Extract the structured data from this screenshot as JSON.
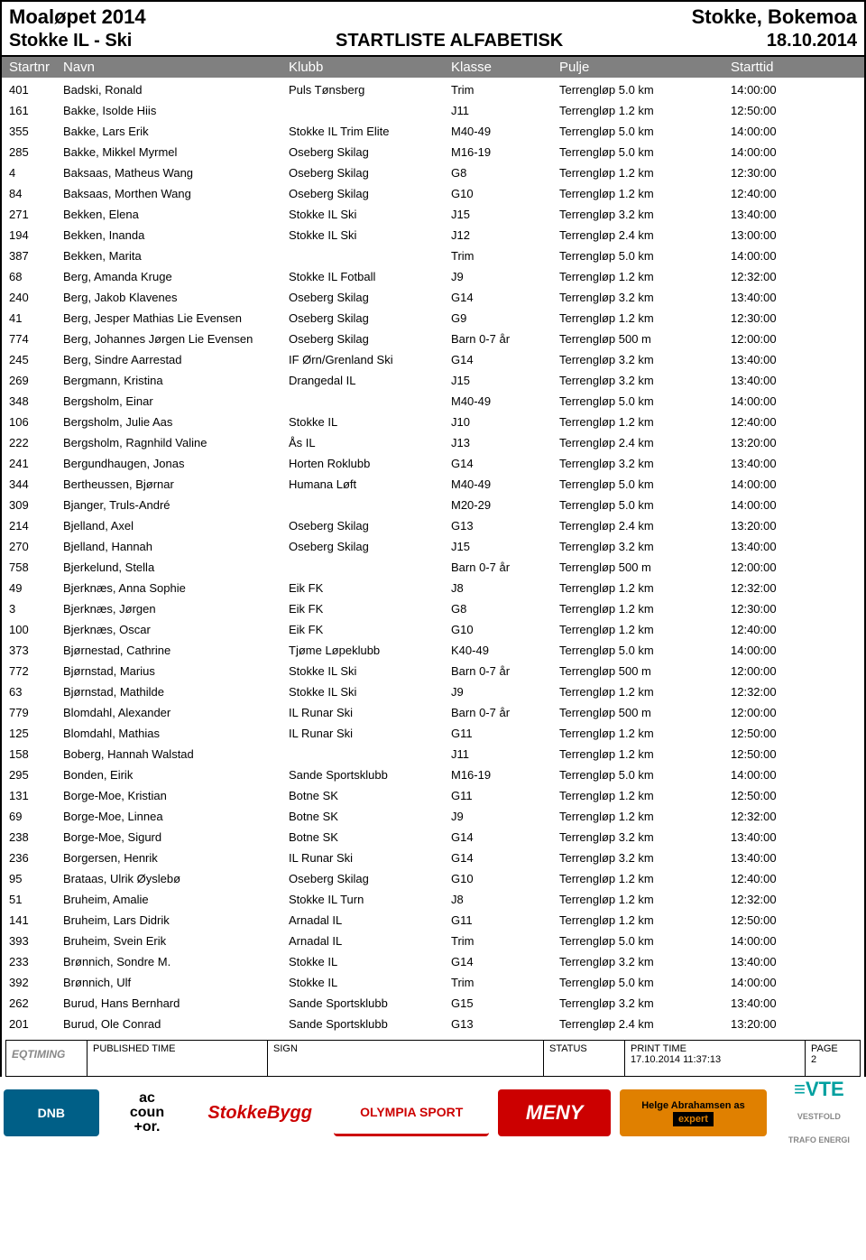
{
  "header": {
    "event": "Moaløpet 2014",
    "location": "Stokke, Bokemoa",
    "organizer": "Stokke IL - Ski",
    "title": "STARTLISTE ALFABETISK",
    "date": "18.10.2014"
  },
  "columns": {
    "startnr": "Startnr",
    "navn": "Navn",
    "klubb": "Klubb",
    "klasse": "Klasse",
    "pulje": "Pulje",
    "starttid": "Starttid"
  },
  "rows": [
    {
      "nr": "401",
      "navn": "Badski, Ronald",
      "klubb": "Puls Tønsberg",
      "klasse": "Trim",
      "pulje": "Terrengløp 5.0 km",
      "tid": "14:00:00"
    },
    {
      "nr": "161",
      "navn": "Bakke, Isolde Hiis",
      "klubb": "",
      "klasse": "J11",
      "pulje": "Terrengløp 1.2 km",
      "tid": "12:50:00"
    },
    {
      "nr": "355",
      "navn": "Bakke, Lars Erik",
      "klubb": "Stokke IL Trim Elite",
      "klasse": "M40-49",
      "pulje": "Terrengløp 5.0 km",
      "tid": "14:00:00"
    },
    {
      "nr": "285",
      "navn": "Bakke, Mikkel Myrmel",
      "klubb": "Oseberg Skilag",
      "klasse": "M16-19",
      "pulje": "Terrengløp 5.0 km",
      "tid": "14:00:00"
    },
    {
      "nr": "4",
      "navn": "Baksaas, Matheus Wang",
      "klubb": "Oseberg Skilag",
      "klasse": "G8",
      "pulje": "Terrengløp 1.2 km",
      "tid": "12:30:00"
    },
    {
      "nr": "84",
      "navn": "Baksaas, Morthen Wang",
      "klubb": "Oseberg Skilag",
      "klasse": "G10",
      "pulje": "Terrengløp 1.2 km",
      "tid": "12:40:00"
    },
    {
      "nr": "271",
      "navn": "Bekken, Elena",
      "klubb": "Stokke IL Ski",
      "klasse": "J15",
      "pulje": "Terrengløp 3.2 km",
      "tid": "13:40:00"
    },
    {
      "nr": "194",
      "navn": "Bekken, Inanda",
      "klubb": "Stokke IL Ski",
      "klasse": "J12",
      "pulje": "Terrengløp 2.4 km",
      "tid": "13:00:00"
    },
    {
      "nr": "387",
      "navn": "Bekken, Marita",
      "klubb": "",
      "klasse": "Trim",
      "pulje": "Terrengløp 5.0 km",
      "tid": "14:00:00"
    },
    {
      "nr": "68",
      "navn": "Berg, Amanda Kruge",
      "klubb": "Stokke IL Fotball",
      "klasse": "J9",
      "pulje": "Terrengløp 1.2 km",
      "tid": "12:32:00"
    },
    {
      "nr": "240",
      "navn": "Berg, Jakob Klavenes",
      "klubb": "Oseberg Skilag",
      "klasse": "G14",
      "pulje": "Terrengløp 3.2 km",
      "tid": "13:40:00"
    },
    {
      "nr": "41",
      "navn": "Berg, Jesper Mathias Lie Evensen",
      "klubb": "Oseberg Skilag",
      "klasse": "G9",
      "pulje": "Terrengløp 1.2 km",
      "tid": "12:30:00"
    },
    {
      "nr": "774",
      "navn": "Berg, Johannes Jørgen Lie Evensen",
      "klubb": "Oseberg Skilag",
      "klasse": "Barn 0-7 år",
      "pulje": "Terrengløp 500 m",
      "tid": "12:00:00"
    },
    {
      "nr": "245",
      "navn": "Berg, Sindre Aarrestad",
      "klubb": "IF Ørn/Grenland Ski",
      "klasse": "G14",
      "pulje": "Terrengløp 3.2 km",
      "tid": "13:40:00"
    },
    {
      "nr": "269",
      "navn": "Bergmann, Kristina",
      "klubb": "Drangedal IL",
      "klasse": "J15",
      "pulje": "Terrengløp 3.2 km",
      "tid": "13:40:00"
    },
    {
      "nr": "348",
      "navn": "Bergsholm, Einar",
      "klubb": "",
      "klasse": "M40-49",
      "pulje": "Terrengløp 5.0 km",
      "tid": "14:00:00"
    },
    {
      "nr": "106",
      "navn": "Bergsholm, Julie Aas",
      "klubb": "Stokke IL",
      "klasse": "J10",
      "pulje": "Terrengløp 1.2 km",
      "tid": "12:40:00"
    },
    {
      "nr": "222",
      "navn": "Bergsholm, Ragnhild Valine",
      "klubb": "Ås IL",
      "klasse": "J13",
      "pulje": "Terrengløp 2.4 km",
      "tid": "13:20:00"
    },
    {
      "nr": "241",
      "navn": "Bergundhaugen, Jonas",
      "klubb": "Horten Roklubb",
      "klasse": "G14",
      "pulje": "Terrengløp 3.2 km",
      "tid": "13:40:00"
    },
    {
      "nr": "344",
      "navn": "Bertheussen, Bjørnar",
      "klubb": "Humana Løft",
      "klasse": "M40-49",
      "pulje": "Terrengløp 5.0 km",
      "tid": "14:00:00"
    },
    {
      "nr": "309",
      "navn": "Bjanger, Truls-André",
      "klubb": "",
      "klasse": "M20-29",
      "pulje": "Terrengløp 5.0 km",
      "tid": "14:00:00"
    },
    {
      "nr": "214",
      "navn": "Bjelland, Axel",
      "klubb": "Oseberg Skilag",
      "klasse": "G13",
      "pulje": "Terrengløp 2.4 km",
      "tid": "13:20:00"
    },
    {
      "nr": "270",
      "navn": "Bjelland, Hannah",
      "klubb": "Oseberg Skilag",
      "klasse": "J15",
      "pulje": "Terrengløp 3.2 km",
      "tid": "13:40:00"
    },
    {
      "nr": "758",
      "navn": "Bjerkelund, Stella",
      "klubb": "",
      "klasse": "Barn 0-7 år",
      "pulje": "Terrengløp 500 m",
      "tid": "12:00:00"
    },
    {
      "nr": "49",
      "navn": "Bjerknæs, Anna Sophie",
      "klubb": "Eik FK",
      "klasse": "J8",
      "pulje": "Terrengløp 1.2 km",
      "tid": "12:32:00"
    },
    {
      "nr": "3",
      "navn": "Bjerknæs, Jørgen",
      "klubb": "Eik FK",
      "klasse": "G8",
      "pulje": "Terrengløp 1.2 km",
      "tid": "12:30:00"
    },
    {
      "nr": "100",
      "navn": "Bjerknæs, Oscar",
      "klubb": "Eik FK",
      "klasse": "G10",
      "pulje": "Terrengløp 1.2 km",
      "tid": "12:40:00"
    },
    {
      "nr": "373",
      "navn": "Bjørnestad, Cathrine",
      "klubb": "Tjøme Løpeklubb",
      "klasse": "K40-49",
      "pulje": "Terrengløp 5.0 km",
      "tid": "14:00:00"
    },
    {
      "nr": "772",
      "navn": "Bjørnstad, Marius",
      "klubb": "Stokke IL Ski",
      "klasse": "Barn 0-7 år",
      "pulje": "Terrengløp 500 m",
      "tid": "12:00:00"
    },
    {
      "nr": "63",
      "navn": "Bjørnstad, Mathilde",
      "klubb": "Stokke IL Ski",
      "klasse": "J9",
      "pulje": "Terrengløp 1.2 km",
      "tid": "12:32:00"
    },
    {
      "nr": "779",
      "navn": "Blomdahl, Alexander",
      "klubb": "IL Runar Ski",
      "klasse": "Barn 0-7 år",
      "pulje": "Terrengløp 500 m",
      "tid": "12:00:00"
    },
    {
      "nr": "125",
      "navn": "Blomdahl, Mathias",
      "klubb": "IL Runar Ski",
      "klasse": "G11",
      "pulje": "Terrengløp 1.2 km",
      "tid": "12:50:00"
    },
    {
      "nr": "158",
      "navn": "Boberg, Hannah Walstad",
      "klubb": "",
      "klasse": "J11",
      "pulje": "Terrengløp 1.2 km",
      "tid": "12:50:00"
    },
    {
      "nr": "295",
      "navn": "Bonden, Eirik",
      "klubb": "Sande Sportsklubb",
      "klasse": "M16-19",
      "pulje": "Terrengløp 5.0 km",
      "tid": "14:00:00"
    },
    {
      "nr": "131",
      "navn": "Borge-Moe, Kristian",
      "klubb": "Botne SK",
      "klasse": "G11",
      "pulje": "Terrengløp 1.2 km",
      "tid": "12:50:00"
    },
    {
      "nr": "69",
      "navn": "Borge-Moe, Linnea",
      "klubb": "Botne SK",
      "klasse": "J9",
      "pulje": "Terrengløp 1.2 km",
      "tid": "12:32:00"
    },
    {
      "nr": "238",
      "navn": "Borge-Moe, Sigurd",
      "klubb": "Botne SK",
      "klasse": "G14",
      "pulje": "Terrengløp 3.2 km",
      "tid": "13:40:00"
    },
    {
      "nr": "236",
      "navn": "Borgersen, Henrik",
      "klubb": "IL Runar Ski",
      "klasse": "G14",
      "pulje": "Terrengløp 3.2 km",
      "tid": "13:40:00"
    },
    {
      "nr": "95",
      "navn": "Brataas, Ulrik Øyslebø",
      "klubb": "Oseberg Skilag",
      "klasse": "G10",
      "pulje": "Terrengløp 1.2 km",
      "tid": "12:40:00"
    },
    {
      "nr": "51",
      "navn": "Bruheim, Amalie",
      "klubb": "Stokke IL Turn",
      "klasse": "J8",
      "pulje": "Terrengløp 1.2 km",
      "tid": "12:32:00"
    },
    {
      "nr": "141",
      "navn": "Bruheim, Lars Didrik",
      "klubb": "Arnadal IL",
      "klasse": "G11",
      "pulje": "Terrengløp 1.2 km",
      "tid": "12:50:00"
    },
    {
      "nr": "393",
      "navn": "Bruheim, Svein Erik",
      "klubb": "Arnadal IL",
      "klasse": "Trim",
      "pulje": "Terrengløp 5.0 km",
      "tid": "14:00:00"
    },
    {
      "nr": "233",
      "navn": "Brønnich, Sondre M.",
      "klubb": "Stokke IL",
      "klasse": "G14",
      "pulje": "Terrengløp 3.2 km",
      "tid": "13:40:00"
    },
    {
      "nr": "392",
      "navn": "Brønnich, Ulf",
      "klubb": "Stokke IL",
      "klasse": "Trim",
      "pulje": "Terrengløp 5.0 km",
      "tid": "14:00:00"
    },
    {
      "nr": "262",
      "navn": "Burud, Hans Bernhard",
      "klubb": "Sande Sportsklubb",
      "klasse": "G15",
      "pulje": "Terrengløp 3.2 km",
      "tid": "13:40:00"
    },
    {
      "nr": "201",
      "navn": "Burud, Ole Conrad",
      "klubb": "Sande Sportsklubb",
      "klasse": "G13",
      "pulje": "Terrengløp 2.4 km",
      "tid": "13:20:00"
    }
  ],
  "footer": {
    "logo": "EQTIMING",
    "published": "PUBLISHED TIME",
    "sign": "SIGN",
    "status": "STATUS",
    "printtime_lbl": "PRINT TIME",
    "printtime_val": "17.10.2014 11:37:13",
    "page_lbl": "PAGE",
    "page_val": "2"
  },
  "sponsors": {
    "dnb": "DNB",
    "acc1": "ac",
    "acc2": "coun",
    "acc3": "+or.",
    "stokke": "StokkeBygg",
    "olympia": "OLYMPIA SPORT",
    "meny": "MENY",
    "helge1": "Helge Abrahamsen as",
    "helge2": "expert",
    "vte": "≡VTE",
    "vte2": "VESTFOLD TRAFO ENERGI"
  }
}
